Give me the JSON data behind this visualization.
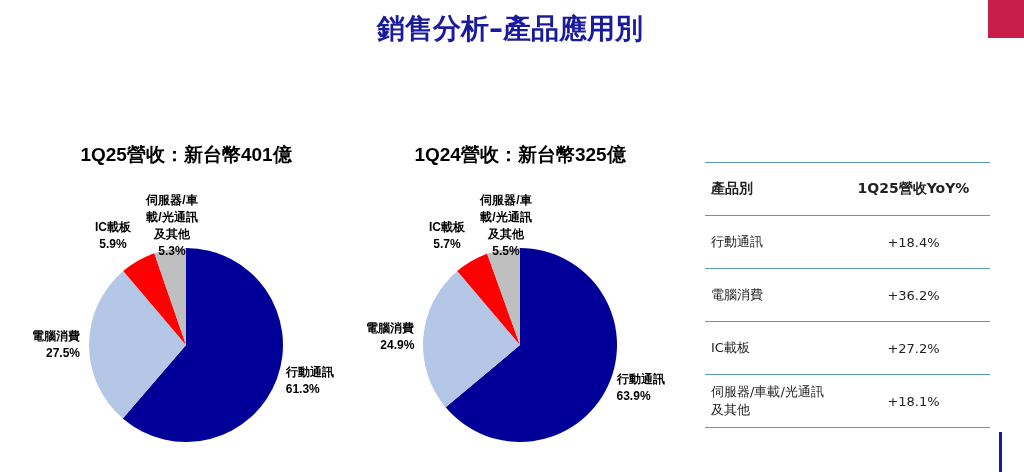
{
  "chart_data": [
    {
      "type": "other",
      "title": "銷售分析–產品應用別"
    },
    {
      "type": "pie",
      "title": "1Q25營收：新台幣401億",
      "categories": [
        "行動通訊",
        "電腦消費",
        "IC載板",
        "伺服器/車載/光通訊及其他"
      ],
      "values": [
        61.3,
        27.5,
        5.9,
        5.3
      ],
      "colors": [
        "#000099",
        "#b4c7e7",
        "#ff0000",
        "#bfbfbf"
      ],
      "value_labels": [
        "61.3%",
        "27.5%",
        "5.9%",
        "5.3%"
      ]
    },
    {
      "type": "pie",
      "title": "1Q24營收：新台幣325億",
      "categories": [
        "行動通訊",
        "電腦消費",
        "IC載板",
        "伺服器/車載/光通訊及其他"
      ],
      "values": [
        63.9,
        24.9,
        5.7,
        5.5
      ],
      "colors": [
        "#000099",
        "#b4c7e7",
        "#ff0000",
        "#bfbfbf"
      ],
      "value_labels": [
        "63.9%",
        "24.9%",
        "5.7%",
        "5.5%"
      ]
    },
    {
      "type": "other",
      "xlabel": "產品別",
      "ylabel": "1Q25營收YoY%",
      "categories": [
        "行動通訊",
        "電腦消費",
        "IC載板",
        "伺服器/車載/光通訊及其他"
      ],
      "value_labels": [
        "+18.4%",
        "+36.2%",
        "+27.2%",
        "+18.1%"
      ]
    }
  ]
}
